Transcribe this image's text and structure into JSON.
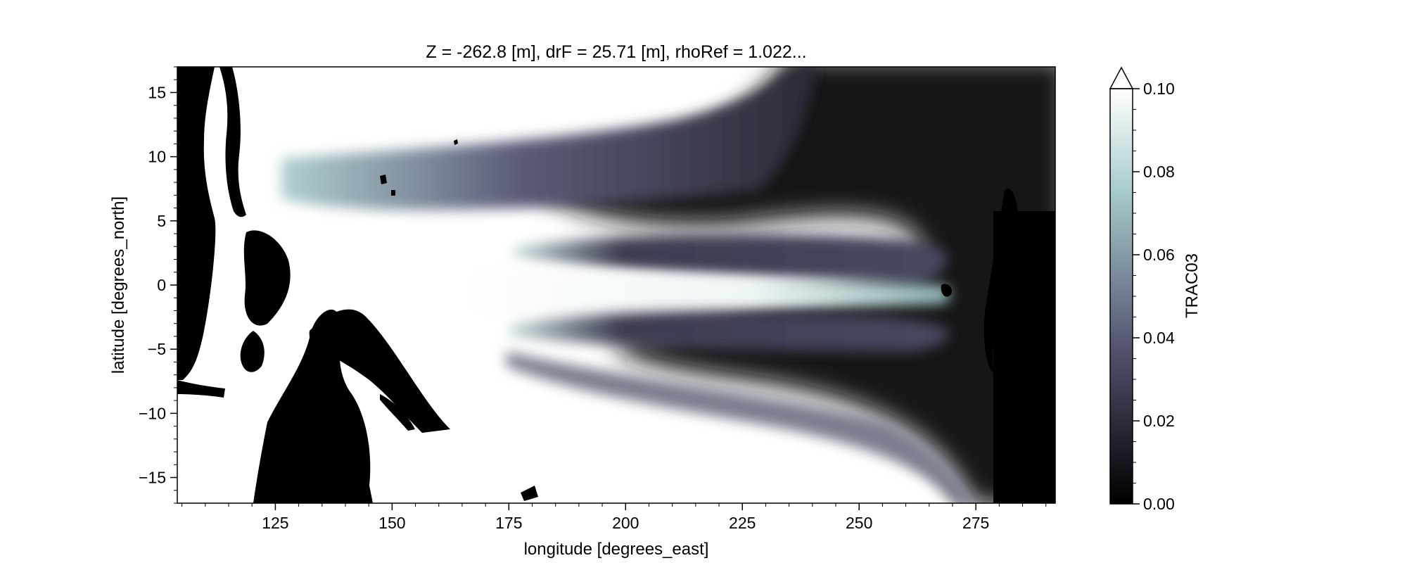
{
  "chart_data": {
    "type": "heatmap",
    "title": "Z = -262.8 [m], drF = 25.71 [m], rhoRef = 1.022...",
    "xlabel": "longitude [degrees_east]",
    "ylabel": "latitude [degrees_north]",
    "xlim": [
      104,
      292
    ],
    "ylim": [
      -17,
      17
    ],
    "xticks": [
      125,
      150,
      175,
      200,
      225,
      250,
      275
    ],
    "xtick_labels": [
      "125",
      "150",
      "175",
      "200",
      "225",
      "250",
      "275"
    ],
    "yticks": [
      15,
      10,
      5,
      0,
      -5,
      -10,
      -15
    ],
    "ytick_labels": [
      "15",
      "10",
      "5",
      "0",
      "−5",
      "−10",
      "−15"
    ],
    "grid": false,
    "colormap": "bone",
    "colorbar": {
      "label": "TRAC03",
      "range": [
        0.0,
        0.1
      ],
      "ticks": [
        0.0,
        0.02,
        0.04,
        0.06,
        0.08,
        0.1
      ],
      "tick_labels": [
        "0.00",
        "0.02",
        "0.04",
        "0.06",
        "0.08",
        "0.10"
      ],
      "extend": "max"
    },
    "land_color": "#000000",
    "features": [
      {
        "name": "northern tongue",
        "lon_start": 128,
        "lon_end": 240,
        "lat_center": 8.5,
        "value_west": 0.08,
        "value_east": 0.03
      },
      {
        "name": "north off-equatorial band",
        "lon_start": 175,
        "lon_end": 268,
        "lat_center": 3,
        "value": 0.035
      },
      {
        "name": "equatorial jet",
        "lon_start": 130,
        "lon_end": 270,
        "lat_center": 0,
        "value_west": 0.1,
        "value_east": 0.08
      },
      {
        "name": "south off-equatorial band",
        "lon_start": 173,
        "lon_end": 268,
        "lat_center": -3.5,
        "value": 0.035
      }
    ]
  },
  "colors": {
    "low": "#000000",
    "mid": "#535370",
    "high": "#a6cbcb",
    "top": "#ffffff"
  }
}
